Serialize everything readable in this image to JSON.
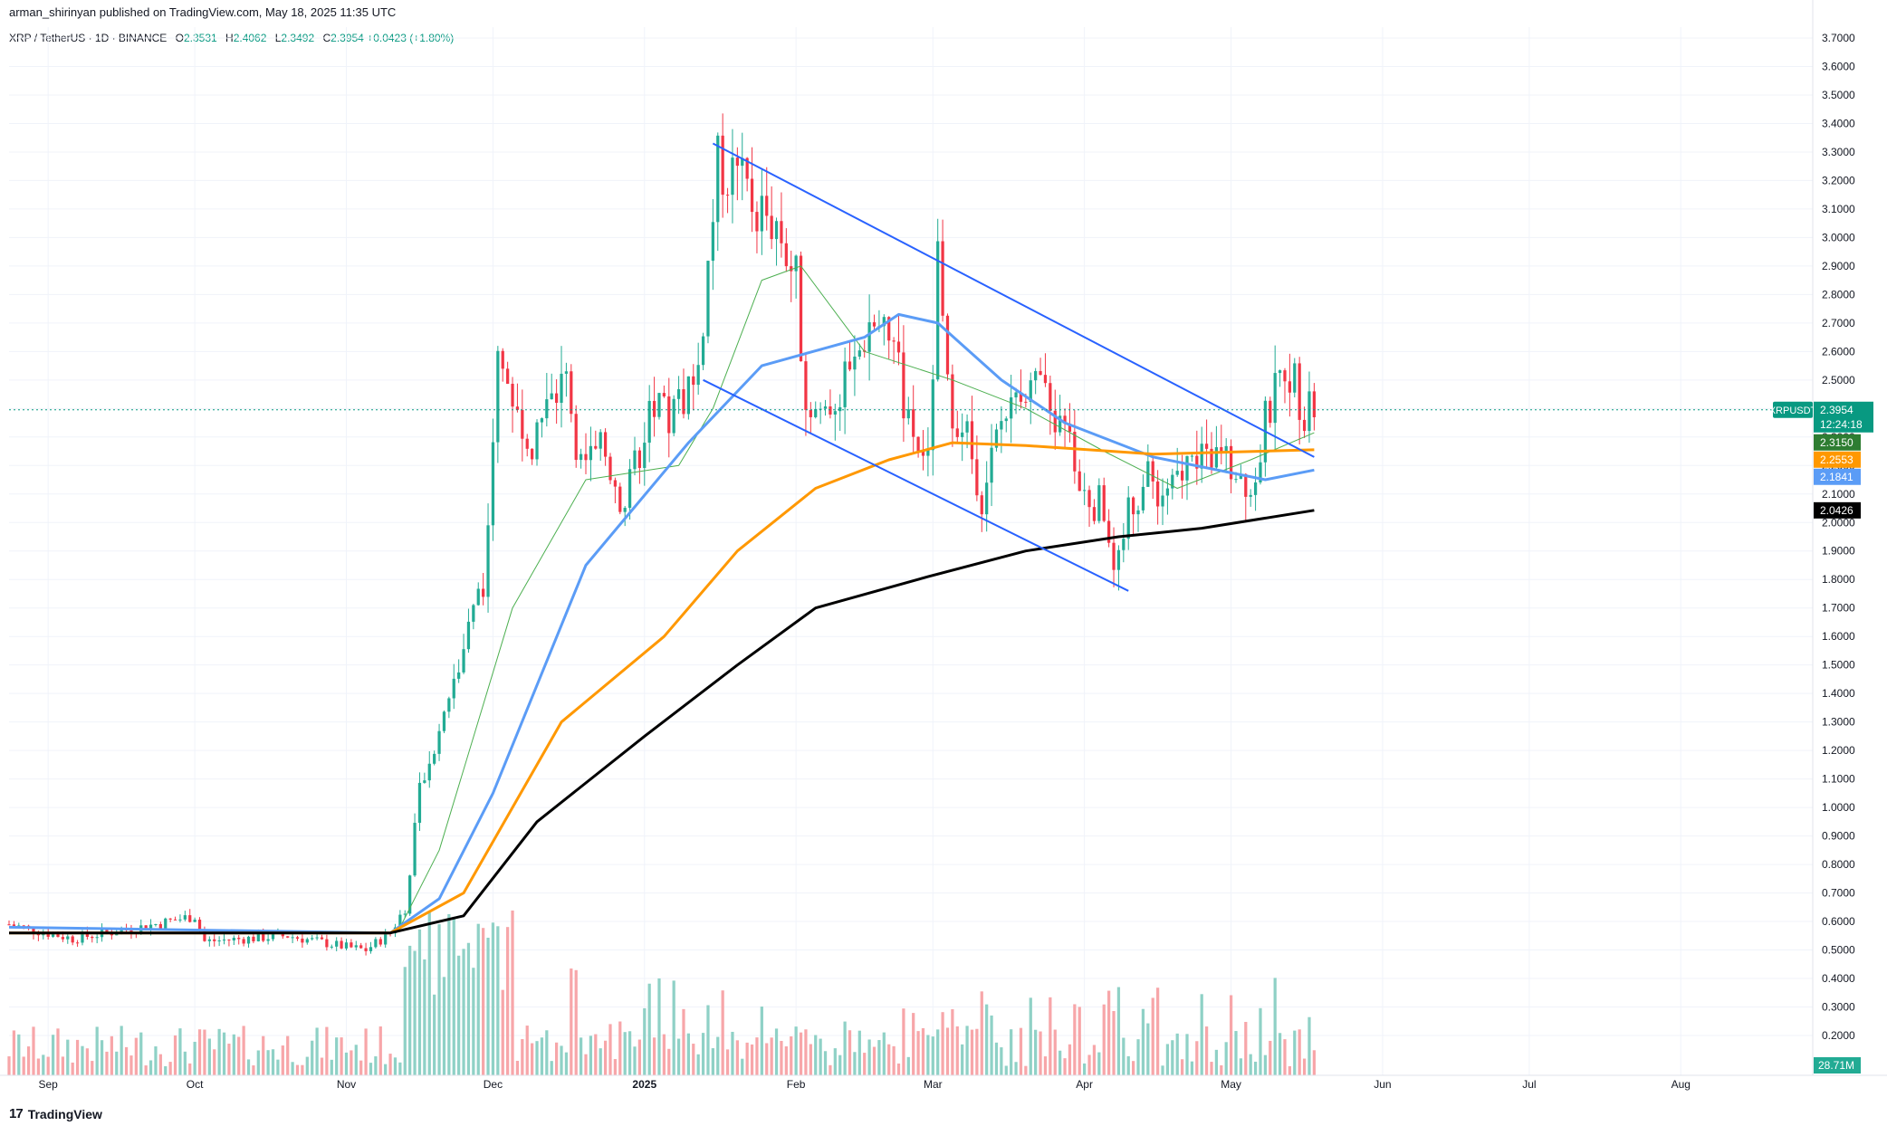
{
  "header": {
    "published_by": "arman_shirinyan published on TradingView.com, May 18, 2025 11:35 UTC",
    "symbol": "XRP / TetherUS · 1D · BINANCE",
    "open_label": "O",
    "open": "2.3531",
    "high_label": "H",
    "high": "2.4062",
    "low_label": "L",
    "low": "2.3492",
    "close_label": "C",
    "close": "2.3954",
    "change": "+0.0423 (+1.80%)"
  },
  "footer": {
    "logo_text": "TradingView",
    "logo_mark": "17"
  },
  "colors": {
    "up": "#22ab94",
    "down": "#f23645",
    "volume_up": "#8fd1c6",
    "volume_down": "#f7a6a9",
    "ma_fast": "#4caf50",
    "ma_mid": "#5b9cf6",
    "ma_slow": "#ff9800",
    "ma_long": "#000000",
    "channel": "#2962ff",
    "grid": "#f0f3fa",
    "last_price_line": "#089981"
  },
  "chart_data": {
    "type": "candlestick",
    "timeframe": "1D",
    "y_axis_ticks": [
      "3.7000",
      "3.6000",
      "3.5000",
      "3.4000",
      "3.3000",
      "3.2000",
      "3.1000",
      "3.0000",
      "2.9000",
      "2.8000",
      "2.7000",
      "2.6000",
      "2.5000",
      "2.4000",
      "2.3000",
      "2.2000",
      "2.1000",
      "2.0000",
      "1.9000",
      "1.8000",
      "1.7000",
      "1.6000",
      "1.5000",
      "1.4000",
      "1.3000",
      "1.2000",
      "1.1000",
      "1.0000",
      "0.9000",
      "0.8000",
      "0.7000",
      "0.6000",
      "0.5000",
      "0.4000",
      "0.3000",
      "0.2000"
    ],
    "ylim": [
      0.15,
      3.72
    ],
    "x_axis_ticks": [
      "Sep",
      "Oct",
      "Nov",
      "Dec",
      "2025",
      "Feb",
      "Mar",
      "Apr",
      "May",
      "Jun",
      "Jul",
      "Aug"
    ],
    "price_path": [
      [
        "2024-08-24",
        0.59
      ],
      [
        "2024-09-06",
        0.54
      ],
      [
        "2024-09-20",
        0.58
      ],
      [
        "2024-10-01",
        0.62
      ],
      [
        "2024-10-03",
        0.53
      ],
      [
        "2024-10-20",
        0.55
      ],
      [
        "2024-11-01",
        0.51
      ],
      [
        "2024-11-05",
        0.5
      ],
      [
        "2024-11-10",
        0.56
      ],
      [
        "2024-11-13",
        0.65
      ],
      [
        "2024-11-16",
        1.05
      ],
      [
        "2024-11-21",
        1.35
      ],
      [
        "2024-11-24",
        1.5
      ],
      [
        "2024-11-29",
        1.8
      ],
      [
        "2024-12-02",
        2.55
      ],
      [
        "2024-12-05",
        2.45
      ],
      [
        "2024-12-09",
        2.3
      ],
      [
        "2024-12-12",
        2.4
      ],
      [
        "2024-12-16",
        2.5
      ],
      [
        "2024-12-19",
        2.2
      ],
      [
        "2024-12-24",
        2.25
      ],
      [
        "2024-12-28",
        2.05
      ],
      [
        "2025-01-02",
        2.4
      ],
      [
        "2025-01-06",
        2.35
      ],
      [
        "2025-01-12",
        2.55
      ],
      [
        "2025-01-16",
        3.25
      ],
      [
        "2025-01-20",
        3.2
      ],
      [
        "2025-01-24",
        3.1
      ],
      [
        "2025-01-28",
        3.05
      ],
      [
        "2025-02-01",
        2.85
      ],
      [
        "2025-02-03",
        2.4
      ],
      [
        "2025-02-07",
        2.4
      ],
      [
        "2025-02-12",
        2.5
      ],
      [
        "2025-02-16",
        2.7
      ],
      [
        "2025-02-21",
        2.6
      ],
      [
        "2025-02-24",
        2.35
      ],
      [
        "2025-02-28",
        2.2
      ],
      [
        "2025-03-02",
        2.9
      ],
      [
        "2025-03-04",
        2.45
      ],
      [
        "2025-03-08",
        2.3
      ],
      [
        "2025-03-11",
        2.1
      ],
      [
        "2025-03-15",
        2.35
      ],
      [
        "2025-03-19",
        2.5
      ],
      [
        "2025-03-24",
        2.42
      ],
      [
        "2025-03-28",
        2.3
      ],
      [
        "2025-04-01",
        2.1
      ],
      [
        "2025-04-05",
        2.05
      ],
      [
        "2025-04-07",
        1.8
      ],
      [
        "2025-04-10",
        2.05
      ],
      [
        "2025-04-14",
        2.15
      ],
      [
        "2025-04-18",
        2.08
      ],
      [
        "2025-04-22",
        2.2
      ],
      [
        "2025-04-26",
        2.25
      ],
      [
        "2025-05-02",
        2.2
      ],
      [
        "2025-05-06",
        2.12
      ],
      [
        "2025-05-08",
        2.35
      ],
      [
        "2025-05-12",
        2.55
      ],
      [
        "2025-05-14",
        2.5
      ],
      [
        "2025-05-16",
        2.38
      ],
      [
        "2025-05-18",
        2.3954
      ]
    ],
    "moving_averages": [
      {
        "color": "#4caf50",
        "points": [
          [
            "2024-11-12",
            0.58
          ],
          [
            "2024-11-20",
            0.85
          ],
          [
            "2024-12-05",
            1.7
          ],
          [
            "2024-12-20",
            2.15
          ],
          [
            "2025-01-08",
            2.2
          ],
          [
            "2025-01-15",
            2.4
          ],
          [
            "2025-01-25",
            2.85
          ],
          [
            "2025-02-02",
            2.9
          ],
          [
            "2025-02-15",
            2.6
          ],
          [
            "2025-03-05",
            2.5
          ],
          [
            "2025-03-20",
            2.4
          ],
          [
            "2025-04-05",
            2.25
          ],
          [
            "2025-04-20",
            2.12
          ],
          [
            "2025-05-05",
            2.22
          ],
          [
            "2025-05-18",
            2.315
          ]
        ]
      },
      {
        "color": "#5b9cf6",
        "points": [
          [
            "2024-08-24",
            0.58
          ],
          [
            "2024-11-10",
            0.56
          ],
          [
            "2024-11-20",
            0.68
          ],
          [
            "2024-12-01",
            1.05
          ],
          [
            "2024-12-20",
            1.85
          ],
          [
            "2025-01-10",
            2.28
          ],
          [
            "2025-01-25",
            2.55
          ],
          [
            "2025-02-15",
            2.65
          ],
          [
            "2025-02-22",
            2.73
          ],
          [
            "2025-03-02",
            2.7
          ],
          [
            "2025-03-15",
            2.5
          ],
          [
            "2025-03-28",
            2.35
          ],
          [
            "2025-04-15",
            2.23
          ],
          [
            "2025-05-08",
            2.15
          ],
          [
            "2025-05-18",
            2.1841
          ]
        ]
      },
      {
        "color": "#ff9800",
        "points": [
          [
            "2024-08-24",
            0.56
          ],
          [
            "2024-11-10",
            0.56
          ],
          [
            "2024-11-25",
            0.7
          ],
          [
            "2024-12-15",
            1.3
          ],
          [
            "2025-01-05",
            1.6
          ],
          [
            "2025-01-20",
            1.9
          ],
          [
            "2025-02-05",
            2.12
          ],
          [
            "2025-02-20",
            2.22
          ],
          [
            "2025-03-05",
            2.28
          ],
          [
            "2025-03-20",
            2.27
          ],
          [
            "2025-04-15",
            2.24
          ],
          [
            "2025-05-18",
            2.2553
          ]
        ]
      },
      {
        "color": "#000000",
        "points": [
          [
            "2024-08-24",
            0.56
          ],
          [
            "2024-11-10",
            0.56
          ],
          [
            "2024-11-25",
            0.62
          ],
          [
            "2024-12-10",
            0.95
          ],
          [
            "2025-01-01",
            1.25
          ],
          [
            "2025-01-20",
            1.5
          ],
          [
            "2025-02-05",
            1.7
          ],
          [
            "2025-02-28",
            1.81
          ],
          [
            "2025-03-20",
            1.9
          ],
          [
            "2025-04-08",
            1.95
          ],
          [
            "2025-04-25",
            1.98
          ],
          [
            "2025-05-18",
            2.0426
          ]
        ]
      }
    ],
    "channel": {
      "upper": [
        [
          "2025-01-15",
          3.33
        ],
        [
          "2025-05-18",
          2.23
        ]
      ],
      "lower": [
        [
          "2025-01-13",
          2.5
        ],
        [
          "2025-04-10",
          1.76
        ]
      ]
    },
    "last_price": "2.3954",
    "countdown": "12:24:18",
    "symbol_tag": "XRPUSDT",
    "price_labels": [
      {
        "value": "2.3150",
        "color": "#2e7d32"
      },
      {
        "value": "2.2553",
        "color": "#ff9800"
      },
      {
        "value": "2.1841",
        "color": "#5b9cf6"
      },
      {
        "value": "2.0426",
        "color": "#000000"
      }
    ],
    "volume_label": "28.71M"
  }
}
